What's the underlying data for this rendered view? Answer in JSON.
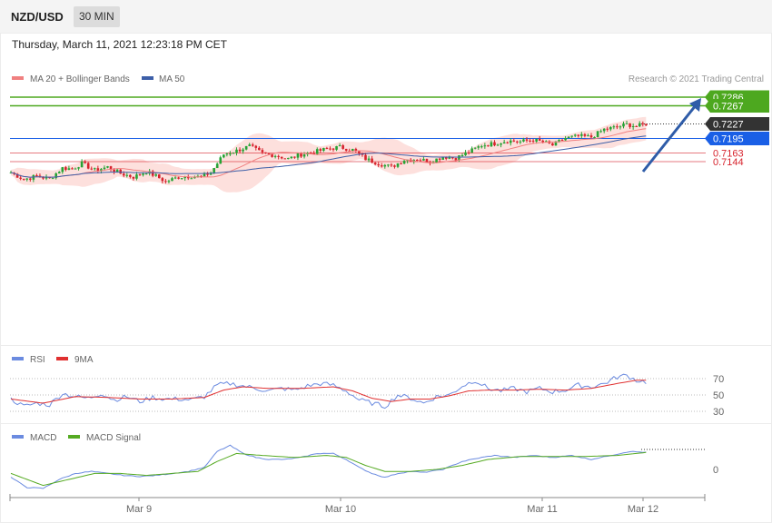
{
  "header": {
    "symbol": "NZD/USD",
    "timeframe": "30 MIN"
  },
  "datetime": "Thursday, March 11, 2021 12:23:18 PM CET",
  "legend": {
    "ma20": "MA 20 + Bollinger Bands",
    "ma50": "MA 50",
    "rsi": "RSI",
    "ma9": "9MA",
    "macd": "MACD",
    "macd_signal": "MACD Signal"
  },
  "copyright": "Research © 2021 Trading Central",
  "colors": {
    "up": "#27a335",
    "down": "#d7232d",
    "bands": "#fde0dd",
    "ma20": "#f08080",
    "ma50": "#3d5fa8",
    "resistance": "#4da81f",
    "support": "#d7232d",
    "pivot": "#1a5fe6",
    "current": "#333333",
    "rsi": "#6b8be0",
    "rsi_ma": "#e03030",
    "macd": "#6b8be0",
    "macd_signal": "#55aa22",
    "arrow": "#2f5ca8"
  },
  "chart_data": {
    "type": "candlestick",
    "x_ticks": [
      "Mar 9",
      "Mar 10",
      "Mar 11",
      "Mar 12"
    ],
    "ylim": [
      0.7082,
      0.7302
    ],
    "levels": [
      {
        "value": "0.7286",
        "role": "resistance"
      },
      {
        "value": "0.7267",
        "role": "resistance"
      },
      {
        "value": "0.7227",
        "role": "current"
      },
      {
        "value": "0.7195",
        "role": "pivot"
      },
      {
        "value": "0.7163",
        "role": "support"
      },
      {
        "value": "0.7144",
        "role": "support"
      }
    ],
    "price": [
      [
        0,
        0.712
      ],
      [
        4,
        0.7105
      ],
      [
        8,
        0.7112
      ],
      [
        12,
        0.7106
      ],
      [
        16,
        0.713
      ],
      [
        19,
        0.7128
      ],
      [
        22,
        0.714
      ],
      [
        26,
        0.7125
      ],
      [
        30,
        0.7132
      ],
      [
        34,
        0.7118
      ],
      [
        38,
        0.711
      ],
      [
        42,
        0.7122
      ],
      [
        45,
        0.7112
      ],
      [
        48,
        0.71
      ],
      [
        52,
        0.711
      ],
      [
        56,
        0.7112
      ],
      [
        59,
        0.711
      ],
      [
        62,
        0.712
      ],
      [
        66,
        0.716
      ],
      [
        70,
        0.7168
      ],
      [
        74,
        0.7178
      ],
      [
        78,
        0.7162
      ],
      [
        82,
        0.7158
      ],
      [
        86,
        0.715
      ],
      [
        90,
        0.716
      ],
      [
        94,
        0.7165
      ],
      [
        98,
        0.7172
      ],
      [
        102,
        0.7176
      ],
      [
        106,
        0.717
      ],
      [
        110,
        0.715
      ],
      [
        114,
        0.714
      ],
      [
        118,
        0.7132
      ],
      [
        122,
        0.7148
      ],
      [
        126,
        0.715
      ],
      [
        130,
        0.7144
      ],
      [
        134,
        0.7155
      ],
      [
        138,
        0.7152
      ],
      [
        142,
        0.7165
      ],
      [
        146,
        0.718
      ],
      [
        150,
        0.7184
      ],
      [
        154,
        0.719
      ],
      [
        158,
        0.7188
      ],
      [
        162,
        0.7192
      ],
      [
        166,
        0.7185
      ],
      [
        168,
        0.718
      ],
      [
        172,
        0.7196
      ],
      [
        176,
        0.72
      ],
      [
        180,
        0.7198
      ],
      [
        184,
        0.7215
      ],
      [
        188,
        0.722
      ],
      [
        191,
        0.7226
      ],
      [
        194,
        0.7222
      ],
      [
        197,
        0.7227
      ]
    ],
    "rsi_yticks": [
      "70",
      "50",
      "30"
    ],
    "rsi": [
      [
        0,
        45
      ],
      [
        4,
        36
      ],
      [
        8,
        40
      ],
      [
        12,
        38
      ],
      [
        16,
        52
      ],
      [
        20,
        48
      ],
      [
        24,
        46
      ],
      [
        28,
        52
      ],
      [
        32,
        44
      ],
      [
        36,
        48
      ],
      [
        40,
        42
      ],
      [
        44,
        47
      ],
      [
        48,
        45
      ],
      [
        52,
        45
      ],
      [
        56,
        44
      ],
      [
        60,
        48
      ],
      [
        64,
        62
      ],
      [
        68,
        64
      ],
      [
        72,
        61
      ],
      [
        76,
        58
      ],
      [
        80,
        55
      ],
      [
        84,
        58
      ],
      [
        88,
        56
      ],
      [
        92,
        61
      ],
      [
        96,
        64
      ],
      [
        100,
        62
      ],
      [
        104,
        55
      ],
      [
        108,
        44
      ],
      [
        112,
        40
      ],
      [
        116,
        36
      ],
      [
        120,
        50
      ],
      [
        124,
        46
      ],
      [
        128,
        40
      ],
      [
        132,
        48
      ],
      [
        136,
        50
      ],
      [
        140,
        61
      ],
      [
        144,
        68
      ],
      [
        148,
        58
      ],
      [
        152,
        55
      ],
      [
        156,
        58
      ],
      [
        160,
        54
      ],
      [
        164,
        58
      ],
      [
        168,
        54
      ],
      [
        172,
        56
      ],
      [
        176,
        62
      ],
      [
        180,
        60
      ],
      [
        184,
        64
      ],
      [
        188,
        72
      ],
      [
        191,
        74
      ],
      [
        194,
        68
      ],
      [
        197,
        66
      ]
    ],
    "rsi_ma": [
      [
        0,
        45
      ],
      [
        10,
        40
      ],
      [
        20,
        48
      ],
      [
        30,
        47
      ],
      [
        40,
        45
      ],
      [
        50,
        45
      ],
      [
        60,
        47
      ],
      [
        66,
        56
      ],
      [
        72,
        60
      ],
      [
        80,
        58
      ],
      [
        90,
        58
      ],
      [
        100,
        60
      ],
      [
        106,
        55
      ],
      [
        112,
        46
      ],
      [
        118,
        42
      ],
      [
        124,
        45
      ],
      [
        130,
        45
      ],
      [
        136,
        49
      ],
      [
        142,
        55
      ],
      [
        148,
        56
      ],
      [
        156,
        56
      ],
      [
        164,
        57
      ],
      [
        172,
        56
      ],
      [
        180,
        58
      ],
      [
        188,
        64
      ],
      [
        194,
        68
      ],
      [
        197,
        68
      ]
    ],
    "macd_ytick": "0",
    "macd": [
      [
        0,
        -0.0008
      ],
      [
        5,
        -0.0018
      ],
      [
        10,
        -0.0019
      ],
      [
        15,
        -0.001
      ],
      [
        20,
        -0.0004
      ],
      [
        25,
        -0.0002
      ],
      [
        30,
        -0.0004
      ],
      [
        35,
        -0.0006
      ],
      [
        40,
        -0.0007
      ],
      [
        45,
        -0.0006
      ],
      [
        50,
        -0.0004
      ],
      [
        55,
        -0.0002
      ],
      [
        60,
        0.0002
      ],
      [
        64,
        0.0018
      ],
      [
        68,
        0.0024
      ],
      [
        72,
        0.0016
      ],
      [
        76,
        0.0012
      ],
      [
        80,
        0.001
      ],
      [
        85,
        0.001
      ],
      [
        90,
        0.0012
      ],
      [
        95,
        0.0016
      ],
      [
        100,
        0.0016
      ],
      [
        104,
        0.001
      ],
      [
        108,
        0.0002
      ],
      [
        112,
        -0.0004
      ],
      [
        116,
        -0.0008
      ],
      [
        120,
        -0.0004
      ],
      [
        124,
        -0.0002
      ],
      [
        128,
        -0.0003
      ],
      [
        134,
        0.0
      ],
      [
        140,
        0.0008
      ],
      [
        146,
        0.0012
      ],
      [
        150,
        0.0014
      ],
      [
        156,
        0.0012
      ],
      [
        162,
        0.0014
      ],
      [
        168,
        0.0012
      ],
      [
        174,
        0.0014
      ],
      [
        180,
        0.001
      ],
      [
        186,
        0.0014
      ],
      [
        192,
        0.0018
      ],
      [
        197,
        0.0017
      ]
    ],
    "macd_signal": [
      [
        0,
        -0.0004
      ],
      [
        10,
        -0.0016
      ],
      [
        18,
        -0.001
      ],
      [
        26,
        -0.0004
      ],
      [
        34,
        -0.0004
      ],
      [
        42,
        -0.0006
      ],
      [
        50,
        -0.0004
      ],
      [
        58,
        -0.0002
      ],
      [
        64,
        0.0008
      ],
      [
        70,
        0.0016
      ],
      [
        78,
        0.0014
      ],
      [
        88,
        0.0012
      ],
      [
        98,
        0.0014
      ],
      [
        104,
        0.0012
      ],
      [
        110,
        0.0004
      ],
      [
        116,
        -0.0002
      ],
      [
        124,
        -0.0002
      ],
      [
        132,
        0.0
      ],
      [
        140,
        0.0004
      ],
      [
        148,
        0.001
      ],
      [
        158,
        0.0013
      ],
      [
        168,
        0.0013
      ],
      [
        178,
        0.0013
      ],
      [
        188,
        0.0014
      ],
      [
        197,
        0.0017
      ]
    ]
  }
}
